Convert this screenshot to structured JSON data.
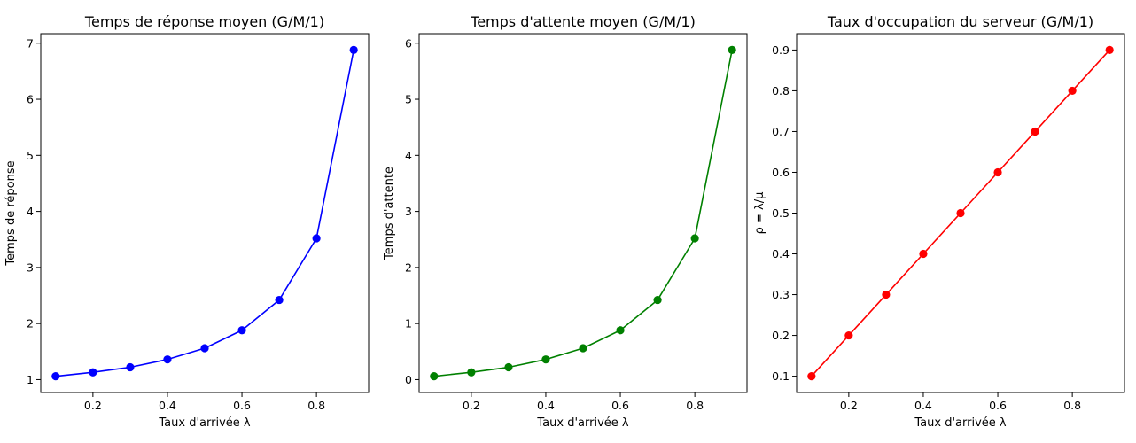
{
  "chart_data": [
    {
      "type": "line",
      "title": "Temps de réponse moyen (G/M/1)",
      "xlabel": "Taux d'arrivée λ",
      "ylabel": "Temps de réponse",
      "x": [
        0.1,
        0.2,
        0.3,
        0.4,
        0.5,
        0.6,
        0.7,
        0.8,
        0.9
      ],
      "series": [
        {
          "values": [
            1.06,
            1.13,
            1.22,
            1.36,
            1.56,
            1.88,
            2.42,
            3.52,
            6.88
          ],
          "color": "#0000ff",
          "marker": "circle"
        }
      ],
      "xticks": [
        0.2,
        0.4,
        0.6,
        0.8
      ],
      "xtick_labels": [
        "0.2",
        "0.4",
        "0.6",
        "0.8"
      ],
      "yticks": [
        1,
        2,
        3,
        4,
        5,
        6,
        7
      ],
      "ytick_labels": [
        "1",
        "2",
        "3",
        "4",
        "5",
        "6",
        "7"
      ],
      "xlim": [
        0.06,
        0.94
      ],
      "ylim": [
        0.77,
        7.17
      ],
      "grid": false,
      "legend": "none"
    },
    {
      "type": "line",
      "title": "Temps d'attente moyen (G/M/1)",
      "xlabel": "Taux d'arrivée λ",
      "ylabel": "Temps d'attente",
      "x": [
        0.1,
        0.2,
        0.3,
        0.4,
        0.5,
        0.6,
        0.7,
        0.8,
        0.9
      ],
      "series": [
        {
          "values": [
            0.06,
            0.13,
            0.22,
            0.36,
            0.56,
            0.88,
            1.42,
            2.52,
            5.88
          ],
          "color": "#008000",
          "marker": "circle"
        }
      ],
      "xticks": [
        0.2,
        0.4,
        0.6,
        0.8
      ],
      "xtick_labels": [
        "0.2",
        "0.4",
        "0.6",
        "0.8"
      ],
      "yticks": [
        0,
        1,
        2,
        3,
        4,
        5,
        6
      ],
      "ytick_labels": [
        "0",
        "1",
        "2",
        "3",
        "4",
        "5",
        "6"
      ],
      "xlim": [
        0.06,
        0.94
      ],
      "ylim": [
        -0.23,
        6.17
      ],
      "grid": false,
      "legend": "none"
    },
    {
      "type": "line",
      "title": "Taux d'occupation du serveur (G/M/1)",
      "xlabel": "Taux d'arrivée λ",
      "ylabel": "ρ = λ/μ",
      "x": [
        0.1,
        0.2,
        0.3,
        0.4,
        0.5,
        0.6,
        0.7,
        0.8,
        0.9
      ],
      "series": [
        {
          "values": [
            0.1,
            0.2,
            0.3,
            0.4,
            0.5,
            0.6,
            0.7,
            0.8,
            0.9
          ],
          "color": "#ff0000",
          "marker": "circle"
        }
      ],
      "xticks": [
        0.2,
        0.4,
        0.6,
        0.8
      ],
      "xtick_labels": [
        "0.2",
        "0.4",
        "0.6",
        "0.8"
      ],
      "yticks": [
        0.1,
        0.2,
        0.3,
        0.4,
        0.5,
        0.6,
        0.7,
        0.8,
        0.9
      ],
      "ytick_labels": [
        "0.1",
        "0.2",
        "0.3",
        "0.4",
        "0.5",
        "0.6",
        "0.7",
        "0.8",
        "0.9"
      ],
      "xlim": [
        0.06,
        0.94
      ],
      "ylim": [
        0.06,
        0.94
      ],
      "grid": false,
      "legend": "none"
    }
  ]
}
